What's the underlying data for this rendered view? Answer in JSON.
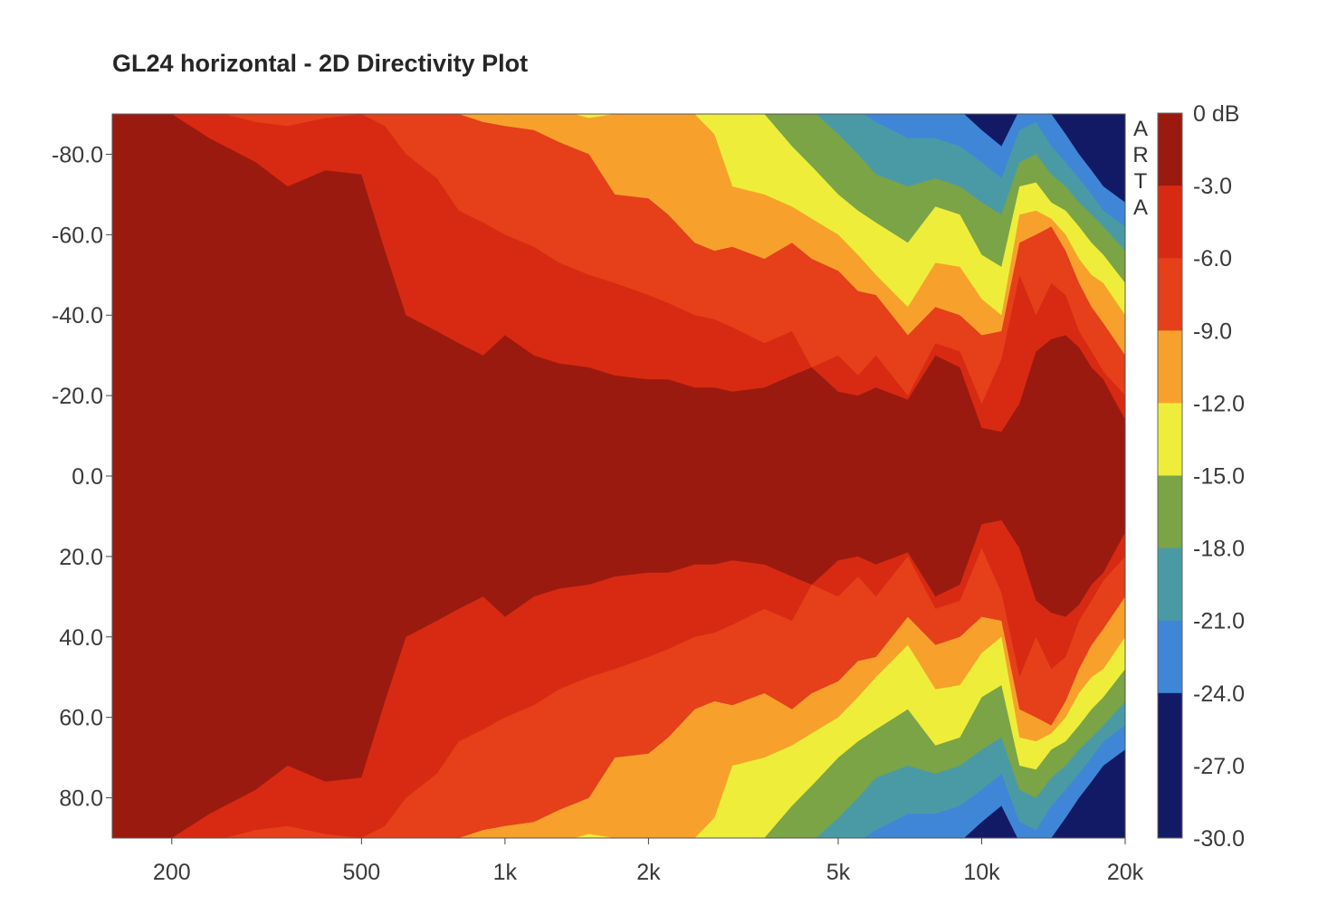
{
  "chart_data": {
    "type": "heatmap",
    "title": "GL24 horizontal - 2D Directivity Plot",
    "xlabel": "",
    "ylabel": "",
    "x_scale": "log",
    "x_range_hz": [
      150,
      20000
    ],
    "y_range_deg": [
      -90,
      90
    ],
    "x_ticks": [
      {
        "value": 200,
        "label": "200"
      },
      {
        "value": 500,
        "label": "500"
      },
      {
        "value": 1000,
        "label": "1k"
      },
      {
        "value": 2000,
        "label": "2k"
      },
      {
        "value": 5000,
        "label": "5k"
      },
      {
        "value": 10000,
        "label": "10k"
      },
      {
        "value": 20000,
        "label": "20k"
      }
    ],
    "y_ticks": [
      {
        "value": -80,
        "label": "-80.0"
      },
      {
        "value": -60,
        "label": "-60.0"
      },
      {
        "value": -40,
        "label": "-40.0"
      },
      {
        "value": -20,
        "label": "-20.0"
      },
      {
        "value": 0,
        "label": "0.0"
      },
      {
        "value": 20,
        "label": "20.0"
      },
      {
        "value": 40,
        "label": "40.0"
      },
      {
        "value": 60,
        "label": "60.0"
      },
      {
        "value": 80,
        "label": "80.0"
      }
    ],
    "colorbar": {
      "unit_label": "0 dB",
      "levels": [
        0,
        -3,
        -6,
        -9,
        -12,
        -15,
        -18,
        -21,
        -24,
        -27,
        -30
      ],
      "level_labels": [
        "0 dB",
        "-3.0",
        "-6.0",
        "-9.0",
        "-12.0",
        "-15.0",
        "-18.0",
        "-21.0",
        "-24.0",
        "-27.0",
        "-30.0"
      ],
      "colors": [
        "#9b1a10",
        "#d82a12",
        "#e5401a",
        "#f7a12c",
        "#eeee3a",
        "#7ba447",
        "#4a9aa6",
        "#3f86d7",
        "#121a66"
      ]
    },
    "contours": {
      "description": "Beamwidth (degrees off-axis, symmetric) at which level falls to each threshold, per frequency",
      "freq_hz": [
        150,
        175,
        200,
        240,
        300,
        350,
        420,
        500,
        560,
        620,
        720,
        800,
        900,
        1000,
        1150,
        1300,
        1500,
        1700,
        2000,
        2200,
        2500,
        2750,
        3000,
        3500,
        4000,
        4400,
        5000,
        5500,
        6000,
        7000,
        8000,
        9000,
        10000,
        11000,
        12000,
        13000,
        14000,
        15000,
        16000,
        17000,
        18000,
        20000
      ],
      "at_-3dB": [
        91,
        91,
        90,
        84,
        78,
        72,
        76,
        75,
        56,
        40,
        36,
        33,
        30,
        35,
        30,
        28,
        27,
        25,
        24,
        24,
        22,
        22,
        21,
        22,
        25,
        27,
        21,
        20,
        22,
        19,
        30,
        27,
        12,
        11,
        18,
        31,
        34,
        35,
        32,
        27,
        24,
        14
      ],
      "at_-6dB": [
        91,
        91,
        91,
        91,
        88,
        87,
        89,
        90,
        87,
        80,
        74,
        66,
        63,
        60,
        57,
        53,
        50,
        48,
        45,
        43,
        40,
        39,
        37,
        33,
        36,
        27,
        30,
        25,
        30,
        20,
        33,
        31,
        18,
        29,
        50,
        40,
        48,
        45,
        36,
        31,
        26,
        20
      ],
      "at_-9dB": [
        91,
        91,
        91,
        91,
        91,
        91,
        91,
        91,
        91,
        91,
        91,
        90,
        88,
        87,
        86,
        83,
        80,
        70,
        69,
        65,
        58,
        56,
        57,
        54,
        58,
        54,
        51,
        46,
        45,
        35,
        42,
        40,
        35,
        36,
        58,
        60,
        62,
        56,
        48,
        42,
        38,
        30
      ],
      "at_-12dB": [
        91,
        91,
        91,
        91,
        91,
        91,
        91,
        91,
        91,
        91,
        91,
        91,
        91,
        91,
        91,
        91,
        89,
        90,
        90,
        90,
        90,
        85,
        72,
        70,
        67,
        64,
        60,
        55,
        50,
        42,
        53,
        52,
        44,
        40,
        65,
        66,
        64,
        60,
        54,
        50,
        48,
        40
      ],
      "at_-15dB": [
        91,
        91,
        91,
        91,
        91,
        91,
        91,
        91,
        91,
        91,
        91,
        91,
        91,
        91,
        91,
        91,
        91,
        91,
        91,
        91,
        91,
        91,
        91,
        90,
        82,
        77,
        70,
        66,
        63,
        58,
        67,
        65,
        55,
        52,
        72,
        73,
        68,
        66,
        62,
        58,
        55,
        48
      ],
      "at_-18dB": [
        91,
        91,
        91,
        91,
        91,
        91,
        91,
        91,
        91,
        91,
        91,
        91,
        91,
        91,
        91,
        91,
        91,
        91,
        91,
        91,
        91,
        91,
        91,
        91,
        91,
        91,
        85,
        80,
        75,
        72,
        74,
        72,
        68,
        65,
        78,
        80,
        75,
        72,
        68,
        65,
        62,
        56
      ],
      "at_-21dB": [
        91,
        91,
        91,
        91,
        91,
        91,
        91,
        91,
        91,
        91,
        91,
        91,
        91,
        91,
        91,
        91,
        91,
        91,
        91,
        91,
        91,
        91,
        91,
        91,
        91,
        91,
        91,
        91,
        88,
        84,
        84,
        82,
        78,
        74,
        86,
        88,
        82,
        78,
        74,
        70,
        66,
        62
      ],
      "at_-24dB": [
        91,
        91,
        91,
        91,
        91,
        91,
        91,
        91,
        91,
        91,
        91,
        91,
        91,
        91,
        91,
        91,
        91,
        91,
        91,
        91,
        91,
        91,
        91,
        91,
        91,
        91,
        91,
        91,
        91,
        91,
        91,
        91,
        86,
        82,
        91,
        91,
        90,
        85,
        80,
        76,
        72,
        68
      ]
    }
  },
  "watermark": "ARTA"
}
